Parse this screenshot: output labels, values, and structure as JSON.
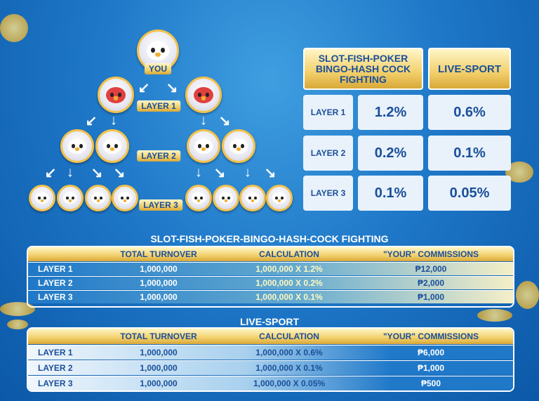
{
  "tree": {
    "you_label": "YOU",
    "layer_labels": [
      "LAYER 1",
      "LAYER 2",
      "LAYER 3"
    ]
  },
  "rate_table": {
    "headers": [
      "SLOT-FISH-POKER BINGO-HASH COCK FIGHTING",
      "LIVE-SPORT"
    ],
    "rows": [
      {
        "layer": "LAYER 1",
        "slot": "1.2%",
        "sport": "0.6%"
      },
      {
        "layer": "LAYER 2",
        "slot": "0.2%",
        "sport": "0.1%"
      },
      {
        "layer": "LAYER 3",
        "slot": "0.1%",
        "sport": "0.05%"
      }
    ]
  },
  "tables": [
    {
      "title": "SLOT-FISH-POKER-BINGO-HASH-COCK FIGHTING",
      "columns": [
        "TOTAL TURNOVER",
        "CALCULATION",
        "\"YOUR\" COMMISSIONS"
      ],
      "rows": [
        {
          "layer": "LAYER 1",
          "turnover": "1,000,000",
          "calc": "1,000,000 X 1.2%",
          "comm": "₱12,000"
        },
        {
          "layer": "LAYER 2",
          "turnover": "1,000,000",
          "calc": "1,000,000 X 0.2%",
          "comm": "₱2,000"
        },
        {
          "layer": "LAYER 3",
          "turnover": "1,000,000",
          "calc": "1,000,000 X 0.1%",
          "comm": "₱1,000"
        }
      ]
    },
    {
      "title": "LIVE-SPORT",
      "columns": [
        "TOTAL TURNOVER",
        "CALCULATION",
        "\"YOUR\" COMMISSIONS"
      ],
      "rows": [
        {
          "layer": "LAYER 1",
          "turnover": "1,000,000",
          "calc": "1,000,000 X 0.6%",
          "comm": "₱6,000"
        },
        {
          "layer": "LAYER 2",
          "turnover": "1,000,000",
          "calc": "1,000,000 X 0.1%",
          "comm": "₱1,000"
        },
        {
          "layer": "LAYER 3",
          "turnover": "1,000,000",
          "calc": "1,000,000 X 0.05%",
          "comm": "₱500"
        }
      ]
    }
  ],
  "colors": {
    "gold": "#f2cf6a",
    "blue": "#1f78c8",
    "text_blue": "#1a4f9a"
  }
}
